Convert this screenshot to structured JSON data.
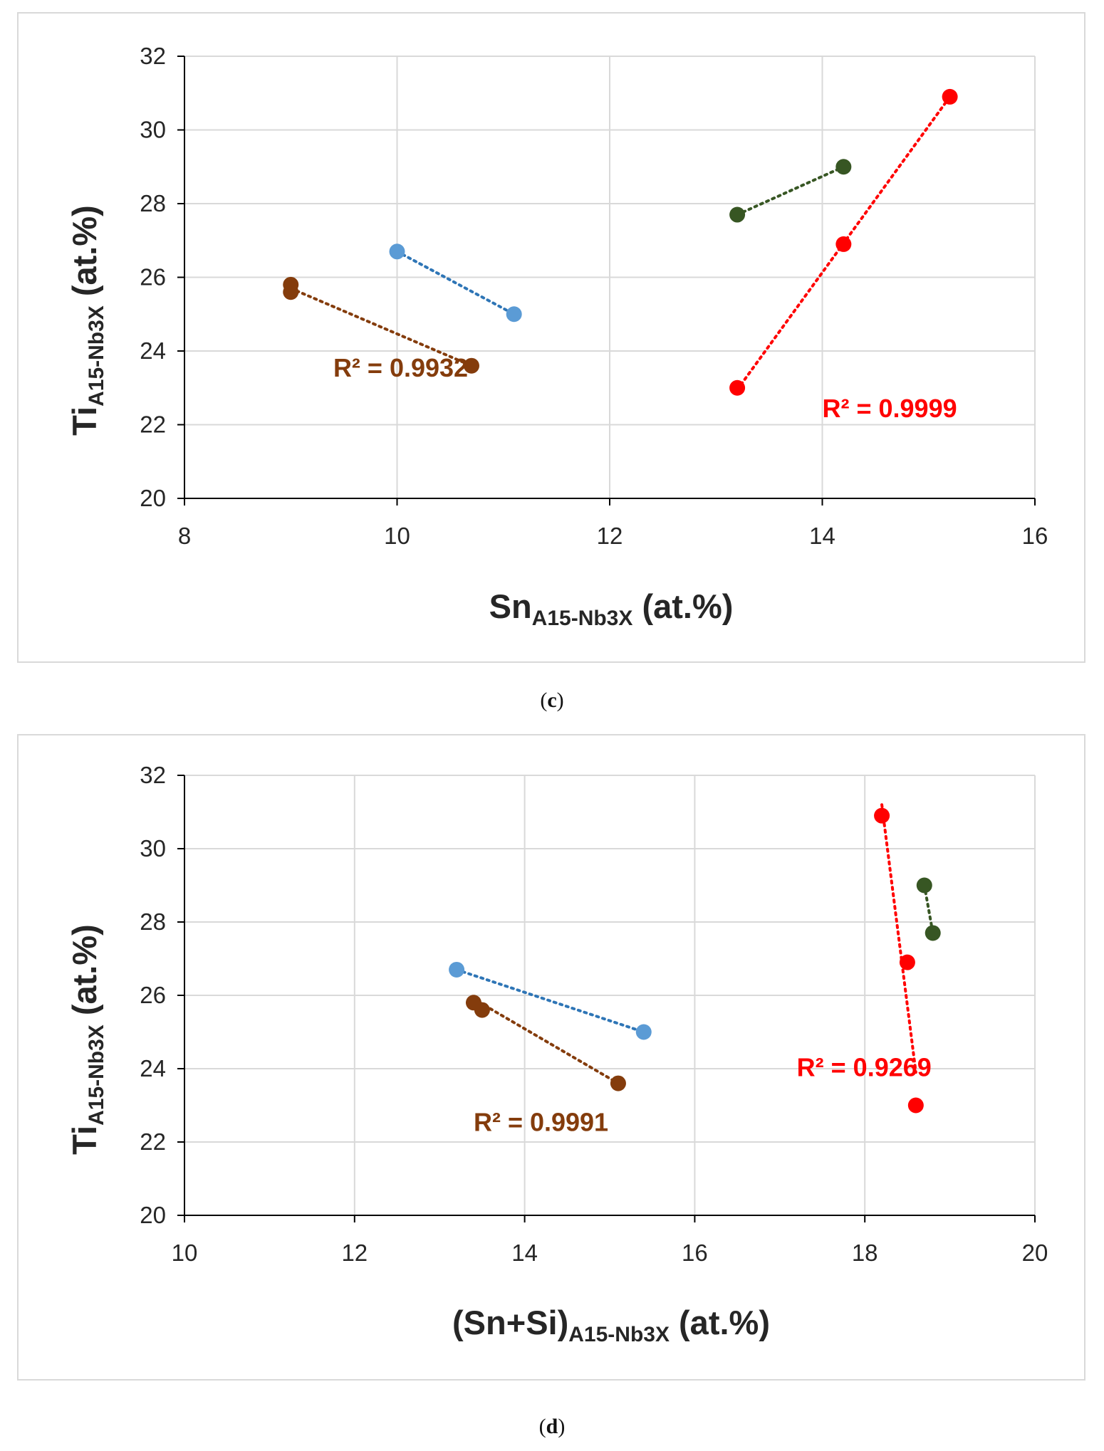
{
  "colors": {
    "blue": "#5b9bd5",
    "blue_line": "#2e75b6",
    "brown": "#843c0c",
    "green": "#375623",
    "red": "#ff0000",
    "grid": "#d9d9d9",
    "frame": "#d9d9d9"
  },
  "chart_data": [
    {
      "type": "scatter",
      "caption": "(c)",
      "caption_letter": "c",
      "ylabel_main": "Ti",
      "ylabel_sub": "A15-Nb3X",
      "ylabel_tail": " (at.%)",
      "xlabel_main": "Sn",
      "xlabel_sub": "A15-Nb3X",
      "xlabel_tail": " (at.%)",
      "xlim": [
        8,
        16
      ],
      "ylim": [
        20,
        32
      ],
      "xticks": [
        "8",
        "10",
        "12",
        "14",
        "16"
      ],
      "yticks": [
        "20",
        "22",
        "24",
        "26",
        "28",
        "30",
        "32"
      ],
      "series": [
        {
          "name": "blue",
          "color": "blue",
          "line_color": "blue_line",
          "x": [
            10.0,
            11.1
          ],
          "y": [
            26.7,
            25.0
          ],
          "trend": [
            [
              10.0,
              26.7
            ],
            [
              11.1,
              25.0
            ]
          ]
        },
        {
          "name": "brown",
          "color": "brown",
          "line_color": "brown",
          "x": [
            9.0,
            9.0,
            10.7
          ],
          "y": [
            25.8,
            25.6,
            23.6
          ],
          "trend": [
            [
              9.0,
              25.7
            ],
            [
              10.7,
              23.6
            ]
          ]
        },
        {
          "name": "green",
          "color": "green",
          "line_color": "green",
          "x": [
            13.2,
            14.2
          ],
          "y": [
            27.7,
            29.0
          ],
          "trend": [
            [
              13.2,
              27.7
            ],
            [
              14.2,
              29.0
            ]
          ]
        },
        {
          "name": "red",
          "color": "red",
          "line_color": "red",
          "x": [
            13.2,
            14.2,
            15.2
          ],
          "y": [
            23.0,
            26.9,
            30.9
          ],
          "trend": [
            [
              13.2,
              22.95
            ],
            [
              15.2,
              30.9
            ]
          ]
        }
      ],
      "annotations": [
        {
          "text": "R² = 0.9932",
          "color": "brown",
          "x": 9.4,
          "y": 23.3
        },
        {
          "text": "R² = 0.9999",
          "color": "red",
          "x": 14.0,
          "y": 22.2
        }
      ]
    },
    {
      "type": "scatter",
      "caption": "(d)",
      "caption_letter": "d",
      "ylabel_main": "Ti",
      "ylabel_sub": "A15-Nb3X",
      "ylabel_tail": " (at.%)",
      "xlabel_main": "(Sn+Si)",
      "xlabel_sub": "A15-Nb3X",
      "xlabel_tail": " (at.%)",
      "xlim": [
        10,
        20
      ],
      "ylim": [
        20,
        32
      ],
      "xticks": [
        "10",
        "12",
        "14",
        "16",
        "18",
        "20"
      ],
      "yticks": [
        "20",
        "22",
        "24",
        "26",
        "28",
        "30",
        "32"
      ],
      "series": [
        {
          "name": "blue",
          "color": "blue",
          "line_color": "blue_line",
          "x": [
            13.2,
            15.4
          ],
          "y": [
            26.7,
            25.0
          ],
          "trend": [
            [
              13.2,
              26.7
            ],
            [
              15.4,
              25.0
            ]
          ]
        },
        {
          "name": "brown",
          "color": "brown",
          "line_color": "brown",
          "x": [
            13.4,
            13.5,
            15.1
          ],
          "y": [
            25.8,
            25.6,
            23.6
          ],
          "trend": [
            [
              13.4,
              25.9
            ],
            [
              15.1,
              23.6
            ]
          ]
        },
        {
          "name": "green",
          "color": "green",
          "line_color": "green",
          "x": [
            18.7,
            18.8
          ],
          "y": [
            29.0,
            27.7
          ],
          "trend": [
            [
              18.7,
              29.0
            ],
            [
              18.8,
              27.7
            ]
          ]
        },
        {
          "name": "red",
          "color": "red",
          "line_color": "red",
          "x": [
            18.2,
            18.5,
            18.6
          ],
          "y": [
            30.9,
            26.9,
            23.0
          ],
          "trend": [
            [
              18.2,
              31.2
            ],
            [
              18.6,
              23.9
            ]
          ]
        }
      ],
      "annotations": [
        {
          "text": "R² = 0.9991",
          "color": "brown",
          "x": 13.4,
          "y": 22.3
        },
        {
          "text": "R² = 0.9269",
          "color": "red",
          "x": 17.2,
          "y": 23.8
        }
      ]
    }
  ]
}
